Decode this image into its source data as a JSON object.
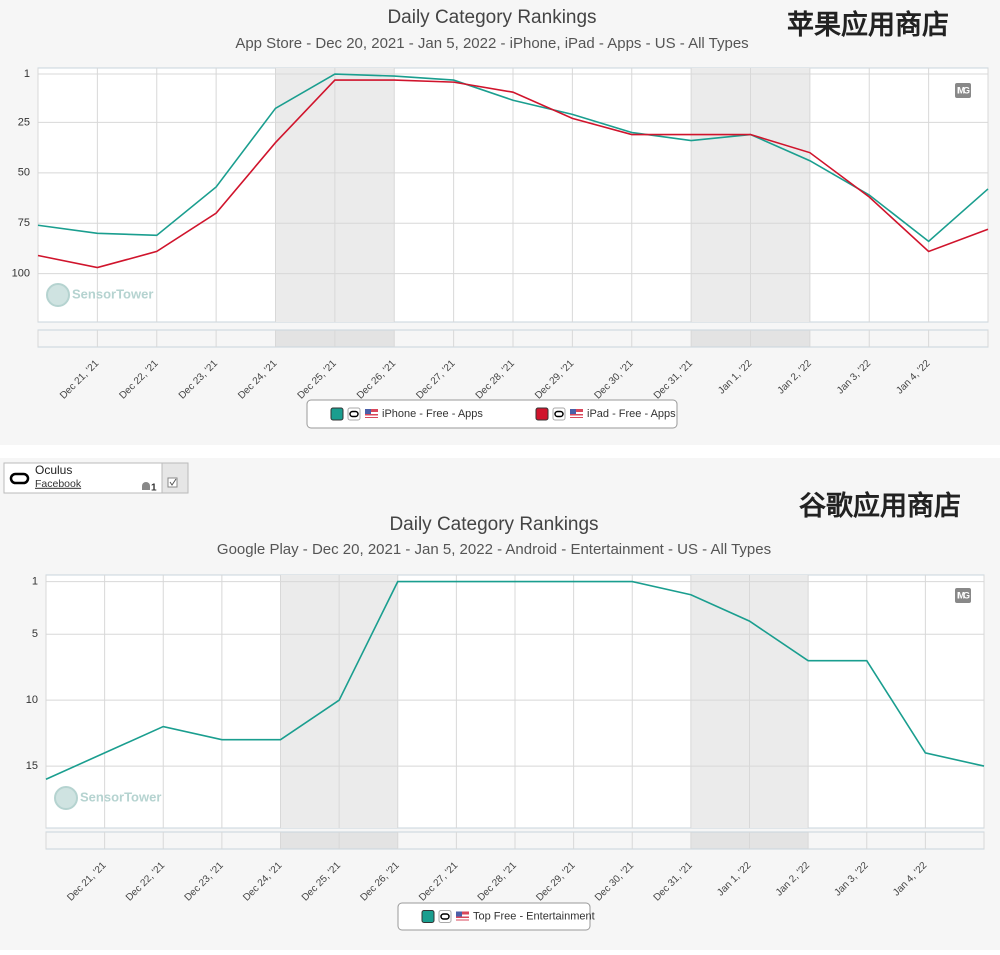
{
  "app_card": {
    "name": "Oculus",
    "publisher": "Facebook",
    "android_count": 1
  },
  "chart_data": [
    {
      "type": "line",
      "title": "Daily Category Rankings",
      "subtitle": "App Store - Dec 20, 2021 - Jan 5, 2022 - iPhone, iPad - Apps - US - All Types",
      "annotation": "苹果应用商店",
      "watermark": "SensorTower",
      "image_button": "IMG",
      "categories": [
        null,
        "Dec 21, '21",
        "Dec 22, '21",
        "Dec 23, '21",
        "Dec 24, '21",
        "Dec 25, '21",
        "Dec 26, '21",
        "Dec 27, '21",
        "Dec 28, '21",
        "Dec 29, '21",
        "Dec 30, '21",
        "Dec 31, '21",
        "Jan 1, '22",
        "Jan 2, '22",
        "Jan 3, '22",
        "Jan 4, '22",
        null
      ],
      "series": [
        {
          "name": "iPhone - Free - Apps",
          "color": "#1a9e8f",
          "values": [
            76,
            80,
            81,
            57,
            18,
            1,
            2,
            4,
            14,
            21,
            30,
            34,
            31,
            44,
            61,
            84,
            58
          ]
        },
        {
          "name": "iPad - Free - Apps",
          "color": "#d0142c",
          "values": [
            91,
            97,
            89,
            70,
            35,
            4,
            4,
            5,
            10,
            23,
            31,
            31,
            31,
            40,
            62,
            89,
            78
          ]
        }
      ],
      "ylim": [
        -2,
        124
      ],
      "yticks": [
        1,
        25,
        50,
        75,
        100
      ],
      "y_inverted": true,
      "grid": true
    },
    {
      "type": "line",
      "title": "Daily Category Rankings",
      "subtitle": "Google Play - Dec 20, 2021 - Jan 5, 2022 - Android - Entertainment - US - All Types",
      "annotation": "谷歌应用商店",
      "watermark": "SensorTower",
      "image_button": "IMG",
      "categories": [
        null,
        "Dec 21, '21",
        "Dec 22, '21",
        "Dec 23, '21",
        "Dec 24, '21",
        "Dec 25, '21",
        "Dec 26, '21",
        "Dec 27, '21",
        "Dec 28, '21",
        "Dec 29, '21",
        "Dec 30, '21",
        "Dec 31, '21",
        "Jan 1, '22",
        "Jan 2, '22",
        "Jan 3, '22",
        "Jan 4, '22",
        null
      ],
      "series": [
        {
          "name": "Top Free - Entertainment",
          "color": "#1a9e8f",
          "values": [
            16,
            14,
            12,
            13,
            13,
            10,
            1,
            1,
            1,
            1,
            1,
            2,
            4,
            7,
            7,
            14,
            15
          ]
        }
      ],
      "ylim": [
        0.5,
        19.7
      ],
      "yticks": [
        1,
        5,
        10,
        15
      ],
      "y_inverted": true,
      "grid": true
    }
  ]
}
